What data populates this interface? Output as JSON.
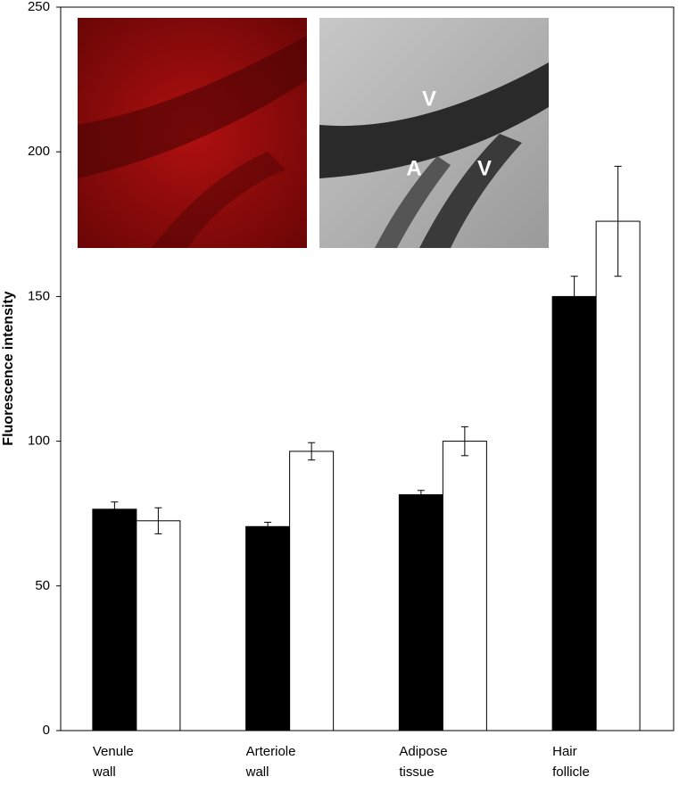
{
  "chart_data": {
    "type": "bar",
    "ylabel": "Fluorescence intensity",
    "categories": [
      [
        "Venule",
        "wall"
      ],
      [
        "Arteriole",
        "wall"
      ],
      [
        "Adipose",
        "tissue"
      ],
      [
        "Hair",
        "follicle"
      ]
    ],
    "series": [
      {
        "color": "#000000",
        "values": [
          76.5,
          70.5,
          81.5,
          150
        ],
        "errors": [
          2.5,
          1.5,
          1.5,
          7
        ]
      },
      {
        "color": "#ffffff",
        "values": [
          72.5,
          96.5,
          100,
          176
        ],
        "errors": [
          4.5,
          3,
          5,
          19
        ]
      }
    ],
    "ylim": [
      0,
      250
    ],
    "yticks": [
      0,
      50,
      100,
      150,
      200,
      250
    ],
    "grid": false,
    "annotations": [
      "V",
      "A",
      "V"
    ]
  }
}
